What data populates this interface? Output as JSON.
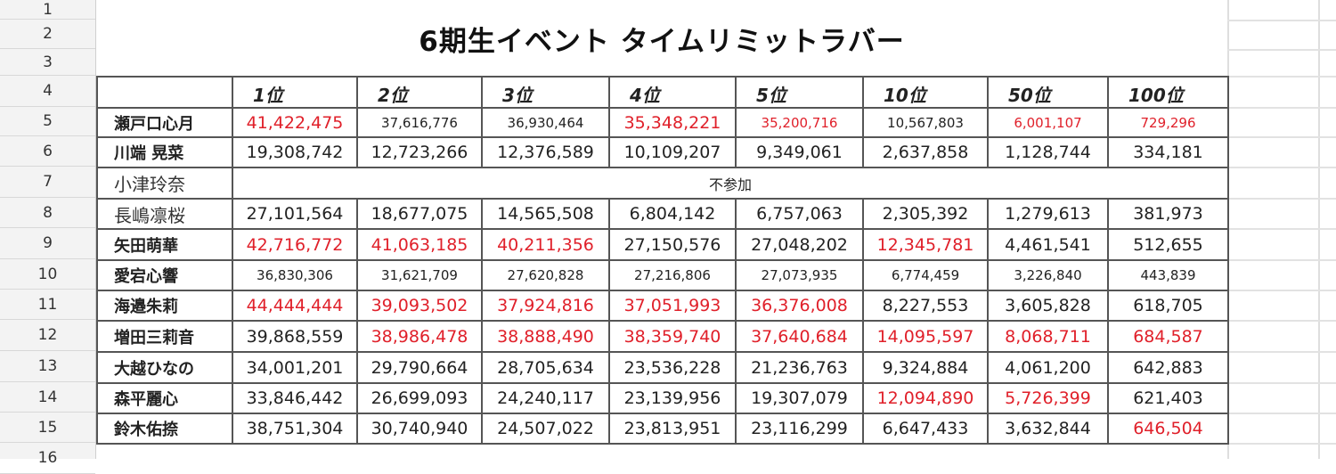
{
  "sheet": {
    "row_numbers": [
      "1",
      "2",
      "3",
      "4",
      "5",
      "6",
      "7",
      "8",
      "9",
      "10",
      "11",
      "12",
      "13",
      "14",
      "15",
      "16"
    ],
    "title": "6期生イベント タイムリミットラバー",
    "colors": {
      "highlight": "#e0202a",
      "text": "#222222",
      "border": "#555555"
    },
    "columns": [
      "1位",
      "2位",
      "3位",
      "4位",
      "5位",
      "10位",
      "50位",
      "100位"
    ],
    "rows": [
      {
        "name": "瀬戸口心月",
        "cells": [
          {
            "v": "41,422,475",
            "red": true,
            "small": false
          },
          {
            "v": "37,616,776",
            "red": false,
            "small": true
          },
          {
            "v": "36,930,464",
            "red": false,
            "small": true
          },
          {
            "v": "35,348,221",
            "red": true,
            "small": false
          },
          {
            "v": "35,200,716",
            "red": true,
            "small": true
          },
          {
            "v": "10,567,803",
            "red": false,
            "small": true
          },
          {
            "v": "6,001,107",
            "red": true,
            "small": true
          },
          {
            "v": "729,296",
            "red": true,
            "small": true
          }
        ]
      },
      {
        "name": "川端 晃菜",
        "cells": [
          {
            "v": "19,308,742"
          },
          {
            "v": "12,723,266"
          },
          {
            "v": "12,376,589"
          },
          {
            "v": "10,109,207"
          },
          {
            "v": "9,349,061"
          },
          {
            "v": "2,637,858"
          },
          {
            "v": "1,128,744"
          },
          {
            "v": "334,181"
          }
        ]
      },
      {
        "name": "小津玲奈",
        "not_participating": "不参加"
      },
      {
        "name": "長嶋凛桜",
        "cells": [
          {
            "v": "27,101,564"
          },
          {
            "v": "18,677,075"
          },
          {
            "v": "14,565,508"
          },
          {
            "v": "6,804,142"
          },
          {
            "v": "6,757,063"
          },
          {
            "v": "2,305,392"
          },
          {
            "v": "1,279,613"
          },
          {
            "v": "381,973"
          }
        ]
      },
      {
        "name": "矢田萌華",
        "cells": [
          {
            "v": "42,716,772",
            "red": true
          },
          {
            "v": "41,063,185",
            "red": true
          },
          {
            "v": "40,211,356",
            "red": true
          },
          {
            "v": "27,150,576"
          },
          {
            "v": "27,048,202"
          },
          {
            "v": "12,345,781",
            "red": true
          },
          {
            "v": "4,461,541"
          },
          {
            "v": "512,655"
          }
        ]
      },
      {
        "name": "愛宕心響",
        "cells": [
          {
            "v": "36,830,306",
            "small": true
          },
          {
            "v": "31,621,709",
            "small": true
          },
          {
            "v": "27,620,828",
            "small": true
          },
          {
            "v": "27,216,806",
            "small": true
          },
          {
            "v": "27,073,935",
            "small": true
          },
          {
            "v": "6,774,459",
            "small": true
          },
          {
            "v": "3,226,840",
            "small": true
          },
          {
            "v": "443,839",
            "small": true
          }
        ]
      },
      {
        "name": "海邉朱莉",
        "cells": [
          {
            "v": "44,444,444",
            "red": true
          },
          {
            "v": "39,093,502",
            "red": true
          },
          {
            "v": "37,924,816",
            "red": true
          },
          {
            "v": "37,051,993",
            "red": true
          },
          {
            "v": "36,376,008",
            "red": true
          },
          {
            "v": "8,227,553"
          },
          {
            "v": "3,605,828"
          },
          {
            "v": "618,705"
          }
        ]
      },
      {
        "name": "増田三莉音",
        "cells": [
          {
            "v": "39,868,559"
          },
          {
            "v": "38,986,478",
            "red": true
          },
          {
            "v": "38,888,490",
            "red": true
          },
          {
            "v": "38,359,740",
            "red": true
          },
          {
            "v": "37,640,684",
            "red": true
          },
          {
            "v": "14,095,597",
            "red": true
          },
          {
            "v": "8,068,711",
            "red": true
          },
          {
            "v": "684,587",
            "red": true
          }
        ]
      },
      {
        "name": "大越ひなの",
        "cells": [
          {
            "v": "34,001,201"
          },
          {
            "v": "29,790,664"
          },
          {
            "v": "28,705,634"
          },
          {
            "v": "23,536,228"
          },
          {
            "v": "21,236,763"
          },
          {
            "v": "9,324,884"
          },
          {
            "v": "4,061,200"
          },
          {
            "v": "642,883"
          }
        ]
      },
      {
        "name": "森平麗心",
        "cells": [
          {
            "v": "33,846,442"
          },
          {
            "v": "26,699,093"
          },
          {
            "v": "24,240,117"
          },
          {
            "v": "23,139,956"
          },
          {
            "v": "19,307,079"
          },
          {
            "v": "12,094,890",
            "red": true
          },
          {
            "v": "5,726,399",
            "red": true
          },
          {
            "v": "621,403"
          }
        ]
      },
      {
        "name": "鈴木佑捺",
        "cells": [
          {
            "v": "38,751,304"
          },
          {
            "v": "30,740,940"
          },
          {
            "v": "24,507,022"
          },
          {
            "v": "23,813,951"
          },
          {
            "v": "23,116,299"
          },
          {
            "v": "6,647,433"
          },
          {
            "v": "3,632,844"
          },
          {
            "v": "646,504",
            "red": true
          }
        ]
      }
    ]
  }
}
